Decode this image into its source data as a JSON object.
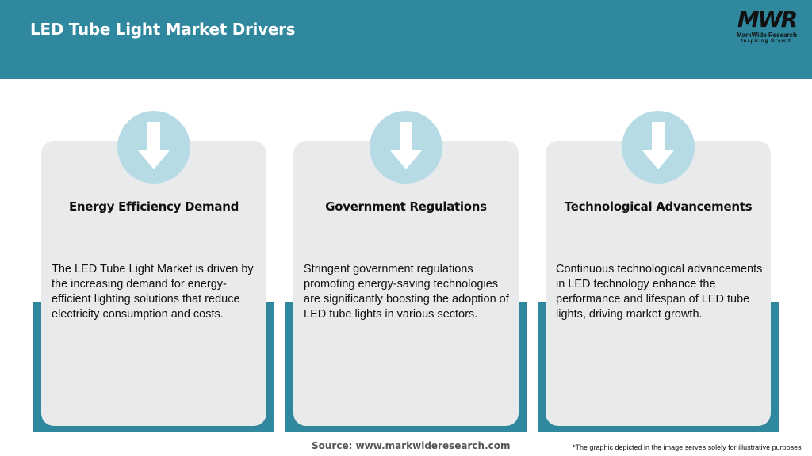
{
  "header": {
    "title": "LED Tube Light Market Drivers"
  },
  "logo": {
    "mark": "MWR",
    "name": "MarkWide Research",
    "tagline": "Inspiring Growth"
  },
  "colors": {
    "header": "#2f889e",
    "card": "#e8eaeb",
    "circle": "#b6dbe5"
  },
  "cards": [
    {
      "icon": "arrow-down-icon",
      "title": "Energy Efficiency Demand",
      "text": "The LED Tube Light Market is driven by the increasing demand for energy-efficient lighting solutions that reduce electricity consumption and costs."
    },
    {
      "icon": "arrow-down-icon",
      "title": "Government Regulations",
      "text": "Stringent government regulations promoting energy-saving technologies are significantly boosting the adoption of LED tube lights in various sectors."
    },
    {
      "icon": "arrow-down-icon",
      "title": "Technological Advancements",
      "text": "Continuous technological advancements in LED technology enhance the performance and lifespan of LED tube lights, driving market growth."
    }
  ],
  "footer": {
    "source": "Source: www.markwideresearch.com",
    "note": "*The graphic depicted in the image serves solely for illustrative purposes"
  }
}
